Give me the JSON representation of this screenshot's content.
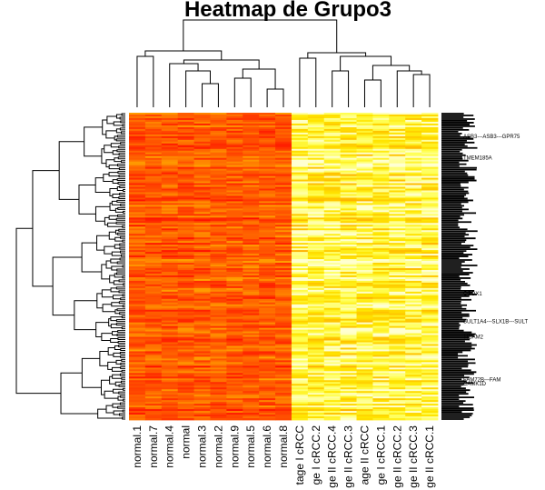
{
  "chart_data": {
    "type": "heatmap",
    "title": "Heatmap de Grupo3",
    "colormap": "heat",
    "columns": [
      "normal.1",
      "normal.7",
      "normal.4",
      "normal",
      "normal.3",
      "normal.2",
      "normal.9",
      "normal.5",
      "normal.6",
      "normal.8",
      "tage I cRCC",
      "ge I cRCC.2",
      "ge II cRCC.4",
      "ge II cRCC.3",
      "age II cRCC",
      "ge I cRCC.1",
      "ge II cRCC.2",
      "ge II cRCC.3",
      "ge II cRCC.1"
    ],
    "column_groups": [
      {
        "group": "normal",
        "columns": [
          "normal.1",
          "normal.7",
          "normal.4",
          "normal",
          "normal.3",
          "normal.2",
          "normal.9",
          "normal.5",
          "normal.6",
          "normal.8"
        ],
        "relative_level": 0.3
      },
      {
        "group": "cRCC",
        "columns": [
          "tage I cRCC",
          "ge I cRCC.2",
          "ge II cRCC.4",
          "ge II cRCC.3",
          "age II cRCC",
          "ge I cRCC.1",
          "ge II cRCC.2",
          "ge II cRCC.3",
          "ge II cRCC.1"
        ],
        "relative_level": 0.85
      }
    ],
    "row_labels_visible": [
      "ASB3---ASB3---GPR75",
      "TMEM185A",
      "QSOX1",
      "SULT1A4---SLX1B---SULT",
      "TICAM2",
      "FAM72B---FAM",
      "CAMK1D"
    ],
    "row_dendrogram": true,
    "column_dendrogram": true
  }
}
